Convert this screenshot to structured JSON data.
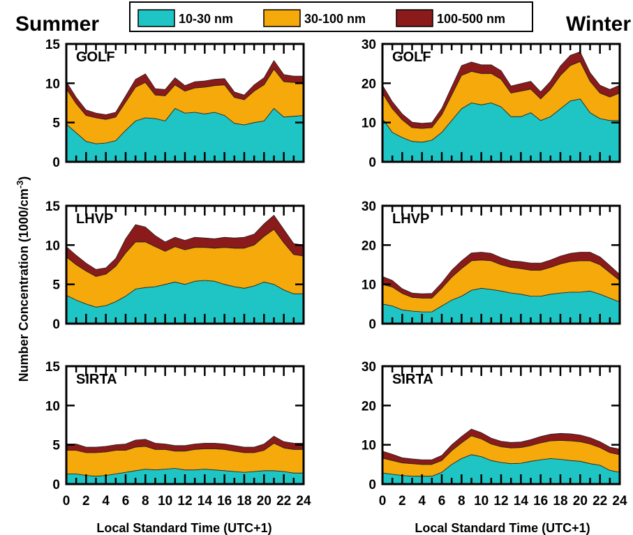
{
  "figure": {
    "season_labels": [
      "Summer",
      "Winter"
    ],
    "y_axis_label": "Number Concentration (1000/cm",
    "y_axis_label_sup": "-3",
    "y_axis_label_end": ")"
  },
  "chart_data": {
    "type": "area",
    "stacked": true,
    "x": [
      0,
      1,
      2,
      3,
      4,
      5,
      6,
      7,
      8,
      9,
      10,
      11,
      12,
      13,
      14,
      15,
      16,
      17,
      18,
      19,
      20,
      21,
      22,
      23,
      24
    ],
    "xlabel": "Local Standard Time (UTC+1)",
    "ylabel": "Number Concentration (1000/cm-3)",
    "x_ticks": [
      0,
      2,
      4,
      6,
      8,
      10,
      12,
      14,
      16,
      18,
      20,
      22,
      24
    ],
    "legend": {
      "placement": "top-center",
      "entries": [
        {
          "name": "10-30 nm",
          "color": "#1fc4c4"
        },
        {
          "name": "30-100 nm",
          "color": "#f5a90a"
        },
        {
          "name": "100-500 nm",
          "color": "#8b1a1a"
        }
      ]
    },
    "panels": [
      {
        "site": "GOLF",
        "season": "Summer",
        "ylim": [
          0,
          15
        ],
        "y_ticks": [
          0,
          5,
          10,
          15
        ],
        "series": [
          {
            "name": "10-30 nm",
            "values": [
              4.8,
              3.7,
              2.6,
              2.3,
              2.4,
              2.7,
              4.0,
              5.2,
              5.6,
              5.5,
              5.2,
              6.8,
              6.2,
              6.3,
              6.1,
              6.3,
              5.9,
              4.9,
              4.7,
              5.0,
              5.2,
              6.8,
              5.7,
              5.8,
              5.9
            ]
          },
          {
            "name": "30-100 nm",
            "values": [
              4.5,
              3.7,
              3.3,
              3.3,
              3.0,
              3.0,
              3.6,
              4.3,
              4.5,
              3.0,
              3.2,
              3.0,
              2.8,
              3.1,
              3.4,
              3.4,
              3.9,
              3.3,
              3.2,
              4.0,
              4.6,
              5.0,
              4.5,
              4.3,
              4.2
            ]
          },
          {
            "name": "100-500 nm",
            "values": [
              0.9,
              0.8,
              0.7,
              0.6,
              0.6,
              0.6,
              0.8,
              1.0,
              1.1,
              0.8,
              0.8,
              0.9,
              0.7,
              0.8,
              0.8,
              0.8,
              0.8,
              0.7,
              0.6,
              0.8,
              0.9,
              1.1,
              0.9,
              0.8,
              0.8
            ]
          }
        ]
      },
      {
        "site": "GOLF",
        "season": "Winter",
        "ylim": [
          0,
          30
        ],
        "y_ticks": [
          0,
          10,
          20,
          30
        ],
        "series": [
          {
            "name": "10-30 nm",
            "values": [
              11,
              7.5,
              6.2,
              5.2,
              5.0,
              5.5,
              7.5,
              10.5,
              13.5,
              15.0,
              14.5,
              15.0,
              14.0,
              11.5,
              11.5,
              12.5,
              10.5,
              11.5,
              13.5,
              15.5,
              16.0,
              12.5,
              11.0,
              10.5,
              10.5
            ]
          },
          {
            "name": "30-100 nm",
            "values": [
              6.5,
              6.0,
              4.5,
              3.5,
              3.5,
              3.2,
              4.5,
              6.5,
              8.5,
              8.0,
              8.0,
              7.5,
              7.0,
              6.0,
              6.5,
              6.0,
              5.5,
              7.0,
              8.5,
              9.0,
              9.5,
              8.0,
              6.5,
              6.0,
              7.0
            ]
          },
          {
            "name": "100-500 nm",
            "values": [
              2.0,
              1.8,
              1.5,
              1.4,
              1.3,
              1.3,
              1.6,
              2.1,
              2.5,
              2.4,
              2.2,
              2.2,
              2.2,
              1.8,
              1.9,
              2.0,
              1.8,
              2.0,
              2.4,
              2.6,
              2.5,
              2.2,
              2.0,
              1.9,
              2.0
            ]
          }
        ]
      },
      {
        "site": "LHVP",
        "season": "Summer",
        "ylim": [
          0,
          15
        ],
        "y_ticks": [
          0,
          5,
          10,
          15
        ],
        "series": [
          {
            "name": "10-30 nm",
            "values": [
              3.6,
              3.0,
              2.5,
              2.1,
              2.3,
              2.8,
              3.5,
              4.4,
              4.6,
              4.7,
              5.0,
              5.3,
              5.0,
              5.4,
              5.5,
              5.4,
              5.0,
              4.7,
              4.5,
              4.8,
              5.3,
              5.0,
              4.3,
              3.8,
              3.8
            ]
          },
          {
            "name": "30-100 nm",
            "values": [
              4.9,
              4.5,
              4.2,
              3.9,
              4.0,
              4.5,
              5.5,
              6.0,
              5.8,
              5.1,
              4.2,
              4.5,
              4.4,
              4.3,
              4.2,
              4.2,
              4.7,
              4.9,
              5.1,
              5.2,
              5.8,
              7.0,
              6.0,
              5.0,
              4.8
            ]
          },
          {
            "name": "100-500 nm",
            "values": [
              1.3,
              1.2,
              1.0,
              0.9,
              0.8,
              1.0,
              1.8,
              2.2,
              1.9,
              1.4,
              1.2,
              1.2,
              1.2,
              1.3,
              1.2,
              1.2,
              1.3,
              1.3,
              1.4,
              1.4,
              1.6,
              1.8,
              1.7,
              1.4,
              1.4
            ]
          }
        ]
      },
      {
        "site": "LHVP",
        "season": "Winter",
        "ylim": [
          0,
          30
        ],
        "y_ticks": [
          0,
          10,
          20,
          30
        ],
        "series": [
          {
            "name": "10-30 nm",
            "values": [
              5.0,
              4.5,
              3.5,
              3.2,
              3.0,
              3.0,
              4.5,
              6.0,
              7.0,
              8.5,
              9.0,
              8.7,
              8.3,
              7.8,
              7.5,
              7.0,
              7.0,
              7.5,
              7.8,
              8.0,
              8.0,
              8.3,
              7.5,
              6.5,
              5.5
            ]
          },
          {
            "name": "30-100 nm",
            "values": [
              5.0,
              4.8,
              4.2,
              3.5,
              3.5,
              3.5,
              4.5,
              5.8,
              7.0,
              7.5,
              7.2,
              7.3,
              6.7,
              6.5,
              6.5,
              6.6,
              6.6,
              6.8,
              7.4,
              7.8,
              8.0,
              7.7,
              7.5,
              6.5,
              5.5
            ]
          },
          {
            "name": "100-500 nm",
            "values": [
              2.0,
              1.7,
              1.2,
              1.1,
              1.1,
              1.2,
              1.4,
              1.8,
              2.0,
              2.0,
              2.0,
              1.9,
              1.8,
              1.7,
              1.8,
              1.8,
              1.8,
              1.9,
              2.0,
              2.1,
              2.2,
              2.2,
              2.0,
              1.8,
              1.5
            ]
          }
        ]
      },
      {
        "site": "SIRTA",
        "season": "Summer",
        "ylim": [
          0,
          15
        ],
        "y_ticks": [
          0,
          5,
          10,
          15
        ],
        "series": [
          {
            "name": "10-30 nm",
            "values": [
              1.3,
              1.3,
              1.1,
              1.0,
              1.1,
              1.3,
              1.5,
              1.7,
              1.9,
              1.8,
              1.9,
              2.0,
              1.8,
              1.8,
              1.9,
              1.8,
              1.7,
              1.6,
              1.5,
              1.6,
              1.7,
              1.7,
              1.6,
              1.4,
              1.4
            ]
          },
          {
            "name": "30-100 nm",
            "values": [
              3.0,
              3.0,
              2.9,
              3.0,
              3.0,
              3.0,
              2.8,
              3.0,
              2.9,
              2.6,
              2.5,
              2.2,
              2.4,
              2.6,
              2.6,
              2.7,
              2.7,
              2.6,
              2.5,
              2.4,
              2.6,
              3.5,
              3.0,
              3.0,
              3.0
            ]
          },
          {
            "name": "100-500 nm",
            "values": [
              0.8,
              0.8,
              0.7,
              0.7,
              0.7,
              0.7,
              0.8,
              0.9,
              0.9,
              0.8,
              0.7,
              0.7,
              0.7,
              0.7,
              0.7,
              0.7,
              0.7,
              0.7,
              0.7,
              0.7,
              0.8,
              0.9,
              0.8,
              0.8,
              0.8
            ]
          }
        ]
      },
      {
        "site": "SIRTA",
        "season": "Winter",
        "ylim": [
          0,
          30
        ],
        "y_ticks": [
          0,
          10,
          20,
          30
        ],
        "series": [
          {
            "name": "10-30 nm",
            "values": [
              2.8,
              2.5,
              2.2,
              2.0,
              2.0,
              2.0,
              3.0,
              5.0,
              6.5,
              7.5,
              7.0,
              6.0,
              5.5,
              5.2,
              5.3,
              5.8,
              6.2,
              6.5,
              6.3,
              6.0,
              5.8,
              5.2,
              4.8,
              3.5,
              3.0
            ]
          },
          {
            "name": "30-100 nm",
            "values": [
              3.8,
              3.5,
              3.2,
              3.2,
              3.0,
              3.0,
              3.0,
              3.5,
              4.0,
              4.8,
              4.5,
              4.2,
              4.0,
              4.0,
              4.0,
              4.0,
              4.3,
              4.5,
              4.8,
              5.0,
              5.0,
              5.0,
              4.5,
              4.5,
              4.5
            ]
          },
          {
            "name": "100-500 nm",
            "values": [
              1.8,
              1.6,
              1.3,
              1.2,
              1.2,
              1.2,
              1.3,
              1.5,
              1.6,
              1.7,
              1.6,
              1.5,
              1.4,
              1.4,
              1.4,
              1.5,
              1.6,
              1.7,
              1.8,
              1.8,
              1.7,
              1.6,
              1.5,
              1.4,
              1.4
            ]
          }
        ]
      }
    ]
  }
}
